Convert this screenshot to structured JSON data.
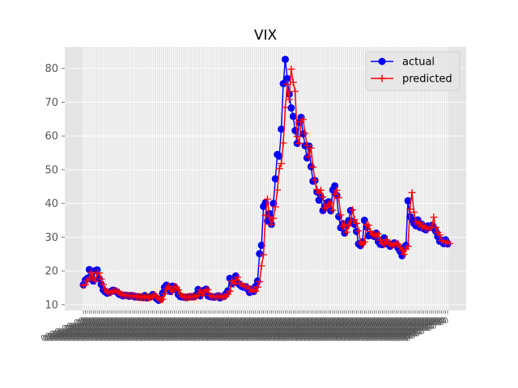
{
  "chart_data": {
    "type": "line",
    "title": "VIX",
    "xlabel": "",
    "ylabel": "",
    "ylim": [
      8.3,
      86.4
    ],
    "yticks": [
      10,
      20,
      30,
      40,
      50,
      60,
      70,
      80
    ],
    "grid": true,
    "legend_position": "upper-right",
    "x_tick_labels": "dense overlapping date labels (unreadable)",
    "series": [
      {
        "name": "actual",
        "color": "#0000ff",
        "marker": "circle",
        "values": [
          15.9,
          17.3,
          17.8,
          20.4,
          18.2,
          17.0,
          20.1,
          20.3,
          17.7,
          16.0,
          14.4,
          13.8,
          13.4,
          13.6,
          14.0,
          14.3,
          14.1,
          13.7,
          13.1,
          12.9,
          12.6,
          12.8,
          12.7,
          12.5,
          12.7,
          12.6,
          12.3,
          12.4,
          12.2,
          12.3,
          12.1,
          12.7,
          12.0,
          12.2,
          12.4,
          13.0,
          12.4,
          11.8,
          11.3,
          11.6,
          13.4,
          15.1,
          15.8,
          14.6,
          13.9,
          15.5,
          15.3,
          14.4,
          13.0,
          12.4,
          12.3,
          12.2,
          12.1,
          12.3,
          12.4,
          12.3,
          12.4,
          12.9,
          14.5,
          12.6,
          13.9,
          14.3,
          14.6,
          12.6,
          12.4,
          12.3,
          12.2,
          12.4,
          12.6,
          12.0,
          12.4,
          12.5,
          13.2,
          14.1,
          17.8,
          16.2,
          17.6,
          18.5,
          16.4,
          15.9,
          15.4,
          15.2,
          15.3,
          14.6,
          13.6,
          14.6,
          13.9,
          15.4,
          17.0,
          25.1,
          27.6,
          39.1,
          40.2,
          34.8,
          37.0,
          33.8,
          40.0,
          47.3,
          54.5,
          54.0,
          62.0,
          75.5,
          82.7,
          77.0,
          72.4,
          68.3,
          65.8,
          61.6,
          57.8,
          64.0,
          65.5,
          60.6,
          57.1,
          53.5,
          57.0,
          50.9,
          46.6,
          46.8,
          43.4,
          41.0,
          41.9,
          37.9,
          39.1,
          40.2,
          40.5,
          37.8,
          44.0,
          45.2,
          42.4,
          36.1,
          32.8,
          34.0,
          31.2,
          33.5,
          34.9,
          37.9,
          34.6,
          33.8,
          31.7,
          28.0,
          27.5,
          28.6,
          35.0,
          33.0,
          30.4,
          30.8,
          30.5,
          30.2,
          31.2,
          28.7,
          27.9,
          27.8,
          29.8,
          28.1,
          28.0,
          27.3,
          27.8,
          28.3,
          28.0,
          26.8,
          25.8,
          24.5,
          26.9,
          27.6,
          40.8,
          36.1,
          35.2,
          34.1,
          33.4,
          35.1,
          32.9,
          33.8,
          32.5,
          32.2,
          33.3,
          32.9,
          33.5,
          32.8,
          31.8,
          30.2,
          28.8,
          29.1,
          28.1,
          29.2,
          28.0
        ]
      },
      {
        "name": "predicted",
        "color": "#ff0000",
        "marker": "plus",
        "values": [
          15.7,
          15.9,
          17.2,
          17.6,
          19.6,
          18.1,
          17.0,
          19.4,
          19.4,
          17.6,
          16.0,
          14.5,
          13.9,
          13.5,
          13.6,
          14.0,
          14.2,
          14.0,
          13.7,
          13.1,
          12.9,
          12.7,
          12.8,
          12.7,
          12.5,
          12.7,
          12.6,
          12.3,
          12.4,
          12.2,
          12.3,
          12.1,
          12.6,
          12.0,
          12.2,
          12.4,
          12.9,
          12.4,
          11.8,
          11.4,
          11.6,
          13.2,
          14.8,
          15.5,
          14.5,
          13.9,
          15.3,
          15.2,
          14.4,
          13.1,
          12.5,
          12.3,
          12.2,
          12.2,
          12.3,
          12.4,
          12.3,
          12.4,
          12.8,
          14.3,
          12.7,
          13.8,
          14.2,
          14.5,
          12.7,
          12.5,
          12.3,
          12.3,
          12.4,
          12.6,
          12.1,
          12.4,
          12.5,
          13.1,
          14.0,
          17.0,
          16.1,
          17.3,
          18.1,
          16.4,
          16.0,
          15.5,
          15.3,
          15.3,
          14.7,
          13.8,
          14.5,
          14.0,
          15.2,
          16.8,
          21.5,
          24.8,
          36.5,
          41.3,
          36.0,
          33.8,
          35.6,
          39.0,
          44.0,
          50.3,
          51.8,
          57.9,
          68.5,
          75.3,
          70.8,
          79.8,
          75.9,
          73.2,
          59.9,
          57.8,
          64.2,
          64.9,
          60.8,
          57.2,
          53.8,
          56.4,
          50.8,
          46.9,
          44.1,
          43.1,
          43.9,
          41.9,
          38.6,
          38.8,
          39.7,
          40.2,
          38.0,
          42.7,
          43.9,
          41.7,
          36.6,
          33.2,
          33.8,
          31.5,
          33.3,
          34.6,
          38.1,
          35.2,
          34.1,
          31.9,
          28.4,
          27.9,
          28.6,
          33.8,
          33.5,
          31.7,
          31.0,
          30.6,
          30.4,
          31.0,
          29.1,
          28.3,
          27.9,
          29.3,
          28.3,
          28.1,
          27.5,
          27.8,
          28.2,
          28.0,
          27.0,
          26.1,
          24.9,
          26.5,
          27.3,
          38.3,
          43.2,
          37.4,
          34.6,
          33.9,
          34.3,
          33.0,
          33.5,
          32.7,
          32.3,
          33.0,
          32.8,
          35.9,
          32.9,
          31.4,
          30.7,
          29.0,
          28.8,
          28.3,
          28.7,
          28.1
        ]
      }
    ]
  }
}
